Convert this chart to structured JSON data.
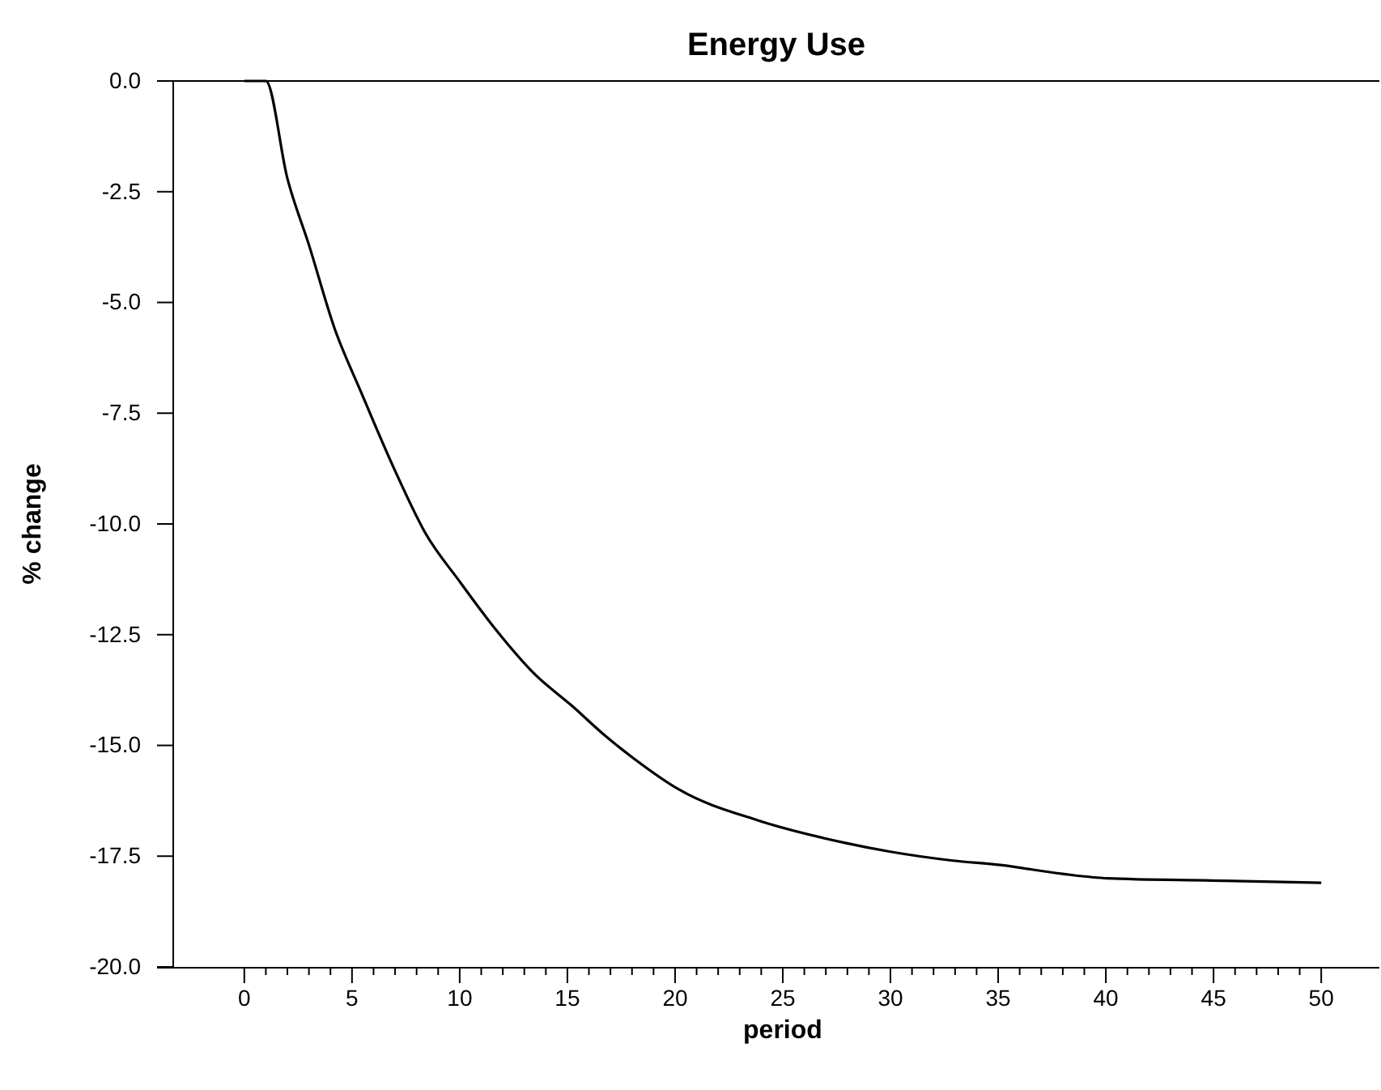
{
  "chart_data": {
    "type": "line",
    "title": "Energy Use",
    "xlabel": "period",
    "ylabel": "% change",
    "x": [
      0,
      1,
      2,
      3,
      4.2,
      5.4,
      7,
      8.4,
      10,
      11.7,
      13.5,
      15.2,
      16.8,
      18.1,
      20.2,
      23.9,
      27.9,
      30,
      32.9,
      35.1,
      38,
      40.1,
      44.9,
      50
    ],
    "series": [
      {
        "color": "#000000",
        "values": [
          0,
          0,
          -2.2,
          -3.7,
          -5.6,
          -7,
          -8.8,
          -10.2,
          -11.3,
          -12.4,
          -13.4,
          -14.1,
          -14.8,
          -15.3,
          -16,
          -16.7,
          -17.2,
          -17.4,
          -17.6,
          -17.7,
          -17.9,
          -18,
          -18.05,
          -18.1
        ]
      }
    ],
    "xlim": [
      -3.3,
      52.7
    ],
    "ylim": [
      -20,
      0
    ],
    "xticks": [
      0,
      {
        "value": 1,
        "label": null
      },
      {
        "value": 2,
        "label": null
      },
      {
        "value": 3,
        "label": null
      },
      {
        "value": 4,
        "label": null
      },
      5,
      {
        "value": 6,
        "label": null
      },
      {
        "value": 7,
        "label": null
      },
      {
        "value": 8,
        "label": null
      },
      {
        "value": 9,
        "label": null
      },
      10,
      {
        "value": 11,
        "label": null
      },
      {
        "value": 12,
        "label": null
      },
      {
        "value": 13,
        "label": null
      },
      {
        "value": 14,
        "label": null
      },
      15,
      {
        "value": 16,
        "label": null
      },
      {
        "value": 17,
        "label": null
      },
      {
        "value": 18,
        "label": null
      },
      {
        "value": 19,
        "label": null
      },
      20,
      {
        "value": 21,
        "label": null
      },
      {
        "value": 22,
        "label": null
      },
      {
        "value": 23,
        "label": null
      },
      {
        "value": 24,
        "label": null
      },
      25,
      {
        "value": 26,
        "label": null
      },
      {
        "value": 27,
        "label": null
      },
      {
        "value": 28,
        "label": null
      },
      {
        "value": 29,
        "label": null
      },
      30,
      {
        "value": 31,
        "label": null
      },
      {
        "value": 32,
        "label": null
      },
      {
        "value": 33,
        "label": null
      },
      {
        "value": 34,
        "label": null
      },
      35,
      {
        "value": 36,
        "label": null
      },
      {
        "value": 37,
        "label": null
      },
      {
        "value": 38,
        "label": null
      },
      {
        "value": 39,
        "label": null
      },
      40,
      {
        "value": 41,
        "label": null
      },
      {
        "value": 42,
        "label": null
      },
      {
        "value": 43,
        "label": null
      },
      {
        "value": 44,
        "label": null
      },
      45,
      {
        "value": 46,
        "label": null
      },
      {
        "value": 47,
        "label": null
      },
      {
        "value": 48,
        "label": null
      },
      {
        "value": 49,
        "label": null
      },
      50
    ],
    "yticks": [
      {
        "value": 0,
        "label": "0.0"
      },
      {
        "value": -2.5,
        "label": "-2.5"
      },
      {
        "value": -5,
        "label": "-5.0"
      },
      {
        "value": -7.5,
        "label": "-7.5"
      },
      {
        "value": -10,
        "label": "-10.0"
      },
      {
        "value": -12.5,
        "label": "-12.5"
      },
      {
        "value": -15,
        "label": "-15.0"
      },
      {
        "value": -17.5,
        "label": "-17.5"
      },
      {
        "value": -20,
        "label": "-20.0"
      }
    ],
    "line_style": "solid"
  }
}
